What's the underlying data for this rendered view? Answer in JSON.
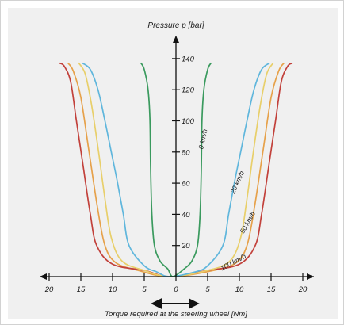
{
  "chart_data": {
    "type": "line",
    "title": "",
    "ylabel": "Pressure p [bar]",
    "xlabel": "Torque required at the steering wheel [Nm]",
    "xlim": [
      -20,
      20
    ],
    "ylim": [
      0,
      140
    ],
    "x_ticks": [
      -20,
      -15,
      -10,
      -5,
      0,
      5,
      10,
      15,
      20
    ],
    "x_tick_labels": [
      "20",
      "15",
      "10",
      "5",
      "0",
      "5",
      "10",
      "15",
      "20"
    ],
    "y_ticks": [
      20,
      40,
      60,
      80,
      100,
      120,
      140
    ],
    "y_tick_labels": [
      "20",
      "40",
      "60",
      "80",
      "100",
      "120",
      "140"
    ],
    "grid": false,
    "legend": "inline labels along right-hand curves",
    "series": [
      {
        "name": "0 km/h",
        "color": "#3a9a5e",
        "right": [
          [
            0.5,
            0
          ],
          [
            1.3,
            5
          ],
          [
            2.5,
            10
          ],
          [
            3.4,
            20
          ],
          [
            3.8,
            40
          ],
          [
            4.0,
            70
          ],
          [
            4.1,
            100
          ],
          [
            4.4,
            120
          ],
          [
            5.0,
            133
          ],
          [
            5.5,
            137
          ]
        ]
      },
      {
        "name": "20 km/h",
        "color": "#5fb6dc",
        "right": [
          [
            1,
            0
          ],
          [
            3,
            3
          ],
          [
            5,
            7
          ],
          [
            7.4,
            20
          ],
          [
            8.3,
            40
          ],
          [
            9.2,
            60
          ],
          [
            10.2,
            80
          ],
          [
            11.2,
            100
          ],
          [
            12.3,
            120
          ],
          [
            13.5,
            133
          ],
          [
            14.7,
            137
          ]
        ]
      },
      {
        "name": "50 km/h",
        "color": "#e8cf6a",
        "right": [
          [
            1,
            0
          ],
          [
            5,
            4
          ],
          [
            8.5,
            10
          ],
          [
            10.2,
            25
          ],
          [
            11.2,
            50
          ],
          [
            12.2,
            80
          ],
          [
            13.3,
            110
          ],
          [
            14.3,
            130
          ],
          [
            15.3,
            137
          ]
        ]
      },
      {
        "name": "100 km/h",
        "color": "#c2413b",
        "right": [
          [
            1,
            0
          ],
          [
            5,
            4
          ],
          [
            10,
            8
          ],
          [
            12.5,
            20
          ],
          [
            13.5,
            40
          ],
          [
            14.6,
            70
          ],
          [
            15.7,
            100
          ],
          [
            16.6,
            125
          ],
          [
            17.6,
            135
          ],
          [
            18.3,
            137
          ]
        ]
      },
      {
        "name": "",
        "color": "#e6a14a",
        "right": [
          [
            1,
            0
          ],
          [
            6,
            4
          ],
          [
            9.5,
            9
          ],
          [
            11.2,
            20
          ],
          [
            12.4,
            45
          ],
          [
            13.7,
            80
          ],
          [
            15,
            115
          ],
          [
            16.2,
            132
          ],
          [
            17,
            137
          ]
        ]
      }
    ],
    "annotation": "double-headed arrow under x axis centered at 0"
  }
}
